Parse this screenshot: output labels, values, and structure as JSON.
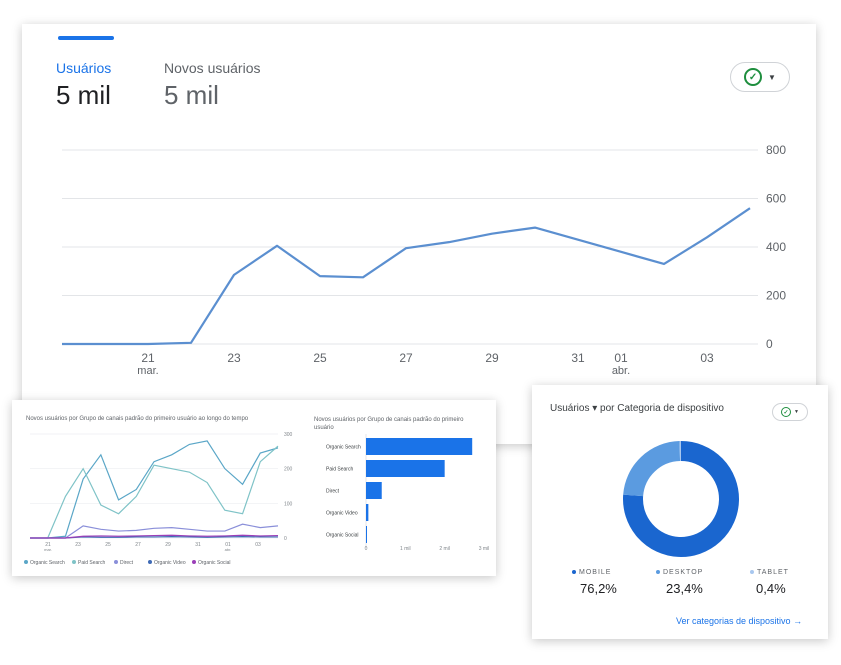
{
  "main": {
    "tabs": [
      {
        "label": "Usuários",
        "value": "5 mil"
      },
      {
        "label": "Novos usuários",
        "value": "5 mil"
      }
    ],
    "colors": {
      "active_tab": "#1a73e8",
      "inactive_tab": "#5f6368",
      "line": "#5b8fd0",
      "check": "#1e8e3e"
    },
    "icons": {
      "status": "check-circle-icon",
      "dropdown": "caret-down-icon"
    }
  },
  "channels_line": {
    "title": "Novos usuários por Grupo de canais padrão do primeiro usuário ao longo do tempo"
  },
  "channels_bar": {
    "title": "Novos usuários por Grupo de canais padrão do primeiro usuário"
  },
  "device": {
    "title": "Usuários ▾ por Categoria de dispositivo",
    "items": [
      {
        "label": "MOBILE",
        "value": "76,2%"
      },
      {
        "label": "DESKTOP",
        "value": "23,4%"
      },
      {
        "label": "TABLET",
        "value": "0,4%"
      }
    ],
    "link_label": "Ver categorias de dispositivo",
    "colors": {
      "mobile": "#1a66cf",
      "desktop": "#5b9be0",
      "tablet": "#a8c7ef",
      "link": "#1a73e8"
    }
  },
  "chart_data": [
    {
      "type": "line",
      "x_ticks": [
        "21\nmar.",
        "23",
        "25",
        "27",
        "29",
        "31",
        "01\nabr.",
        "03"
      ],
      "x": [
        "19 mar",
        "20 mar",
        "21 mar",
        "22 mar",
        "23 mar",
        "24 mar",
        "25 mar",
        "26 mar",
        "27 mar",
        "28 mar",
        "29 mar",
        "30 mar",
        "31 mar",
        "01 abr",
        "02 abr",
        "03 abr",
        "04 abr"
      ],
      "series": [
        {
          "values": [
            0,
            0,
            0,
            5,
            285,
            405,
            280,
            275,
            395,
            420,
            455,
            480,
            430,
            380,
            330,
            440,
            560
          ]
        }
      ],
      "ylim": [
        0,
        800
      ],
      "y_ticks": [
        "0",
        "200",
        "400",
        "600",
        "800"
      ],
      "grid": true
    },
    {
      "type": "line",
      "x_ticks": [
        "21\nmar.",
        "23",
        "25",
        "27",
        "29",
        "31",
        "01\nabr.",
        "03"
      ],
      "y_ticks": [
        "0",
        "100",
        "200",
        "300"
      ],
      "ylim": [
        0,
        300
      ],
      "grid": true,
      "series": [
        {
          "name": "Organic Search",
          "color": "#5aa6c7",
          "values": [
            0,
            0,
            5,
            170,
            240,
            110,
            140,
            220,
            240,
            270,
            280,
            200,
            155,
            245,
            260
          ]
        },
        {
          "name": "Paid Search",
          "color": "#7fc3c7",
          "values": [
            0,
            0,
            120,
            200,
            95,
            70,
            120,
            210,
            200,
            190,
            160,
            80,
            70,
            220,
            265
          ]
        },
        {
          "name": "Direct",
          "color": "#8a8fd9",
          "values": [
            0,
            0,
            0,
            35,
            25,
            20,
            22,
            28,
            30,
            25,
            20,
            20,
            40,
            30,
            35
          ]
        },
        {
          "name": "Organic Video",
          "color": "#3f6ab5",
          "values": [
            0,
            0,
            0,
            3,
            2,
            2,
            3,
            3,
            4,
            3,
            2,
            3,
            4,
            3,
            3
          ]
        },
        {
          "name": "Organic Social",
          "color": "#9b3fb8",
          "values": [
            0,
            0,
            0,
            5,
            6,
            5,
            6,
            7,
            8,
            6,
            5,
            6,
            8,
            6,
            7
          ]
        }
      ]
    },
    {
      "type": "bar",
      "orientation": "horizontal",
      "categories": [
        "Organic Search",
        "Paid Search",
        "Direct",
        "Organic Video",
        "Organic Social"
      ],
      "values": [
        2700,
        2000,
        400,
        60,
        20
      ],
      "xlim": [
        0,
        3000
      ],
      "x_ticks": [
        "0",
        "1 mil",
        "2 mil",
        "3 mil"
      ],
      "color": "#1a73e8"
    },
    {
      "type": "pie",
      "donut": true,
      "categories": [
        "MOBILE",
        "DESKTOP",
        "TABLET"
      ],
      "values": [
        76.2,
        23.4,
        0.4
      ]
    }
  ]
}
